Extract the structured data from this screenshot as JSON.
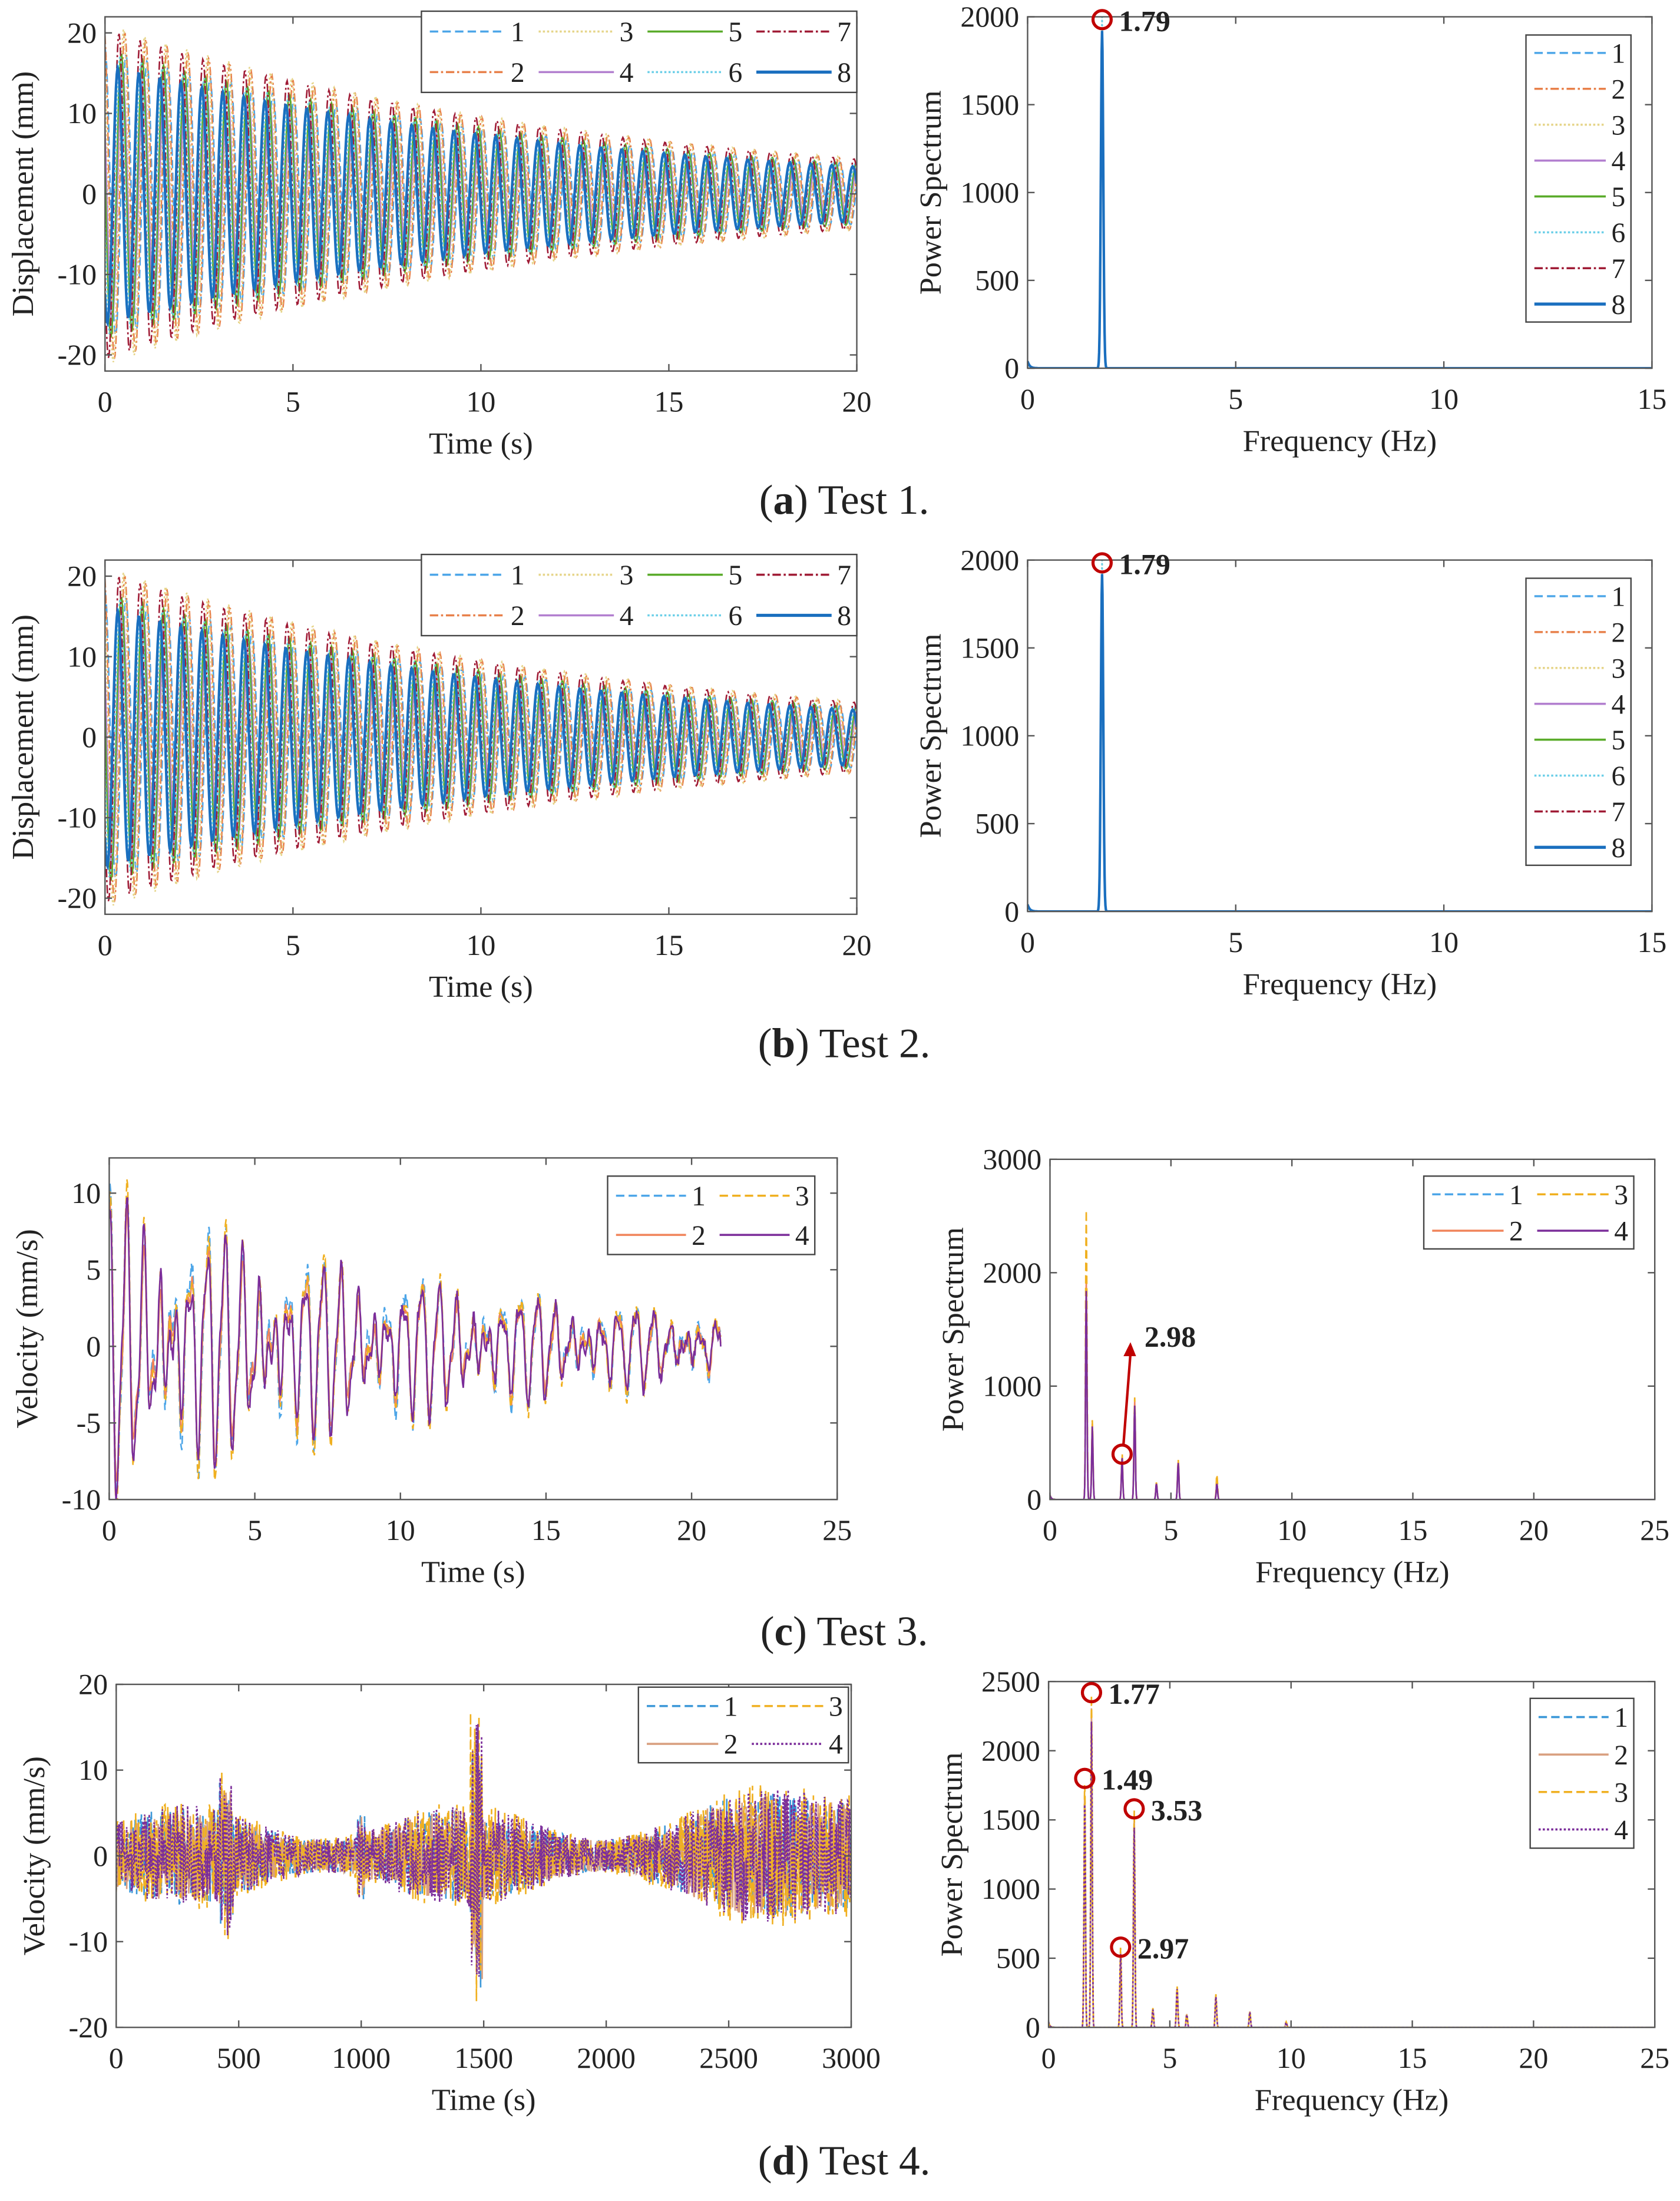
{
  "chart_data": [
    {
      "id": "a-left",
      "type": "line",
      "panel": "a",
      "xlabel": "Time (s)",
      "ylabel": "Displacement (mm)",
      "xlim": [
        0,
        20
      ],
      "ylim": [
        -22,
        22
      ],
      "xticks": [
        0,
        5,
        10,
        15,
        20
      ],
      "yticks": [
        -20,
        -10,
        0,
        10,
        20
      ],
      "signal": {
        "kind": "decay",
        "frequency_hz": 1.79,
        "amplitude_start": 19,
        "amplitude_end": 4
      },
      "series": [
        {
          "name": "1",
          "color": "#4da6e8",
          "dash": "dashed",
          "amp_scale": 0.95
        },
        {
          "name": "2",
          "color": "#e8804a",
          "dash": "dashdot",
          "amp_scale": 1.1
        },
        {
          "name": "3",
          "color": "#e6d58a",
          "dash": "dotted",
          "amp_scale": 1.12
        },
        {
          "name": "4",
          "color": "#b27fcf",
          "dash": "solid",
          "amp_scale": 0.85
        },
        {
          "name": "5",
          "color": "#5aab2a",
          "dash": "solid",
          "amp_scale": 0.95
        },
        {
          "name": "6",
          "color": "#6ccfe8",
          "dash": "dotted",
          "amp_scale": 0.93
        },
        {
          "name": "7",
          "color": "#a01c36",
          "dash": "dashdot",
          "amp_scale": 1.08
        },
        {
          "name": "8",
          "color": "#1a6fbf",
          "dash": "solid",
          "amp_scale": 0.85
        }
      ],
      "legend": "top-right, 4 columns"
    },
    {
      "id": "a-right",
      "type": "line",
      "panel": "a",
      "xlabel": "Frequency (Hz)",
      "ylabel": "Power Spectrum",
      "xlim": [
        0,
        15
      ],
      "ylim": [
        0,
        2000
      ],
      "xticks": [
        0,
        5,
        10,
        15
      ],
      "yticks": [
        0,
        500,
        1000,
        1500,
        2000
      ],
      "peaks": [
        [
          1.79,
          2000
        ]
      ],
      "annotations": [
        {
          "x": 1.79,
          "y": 2000,
          "label": "1.79"
        }
      ],
      "series_from": "a-left",
      "legend": "top-right, 1 column"
    },
    {
      "id": "b-left",
      "type": "line",
      "panel": "b",
      "xlabel": "Time (s)",
      "ylabel": "Displacement (mm)",
      "xlim": [
        0,
        20
      ],
      "ylim": [
        -22,
        22
      ],
      "xticks": [
        0,
        5,
        10,
        15,
        20
      ],
      "yticks": [
        -20,
        -10,
        0,
        10,
        20
      ],
      "signal": {
        "kind": "decay",
        "frequency_hz": 1.79,
        "amplitude_start": 19,
        "amplitude_end": 4
      },
      "series_from": "a-left",
      "legend": "top-right, 4 columns"
    },
    {
      "id": "b-right",
      "type": "line",
      "panel": "b",
      "xlabel": "Frequency (Hz)",
      "ylabel": "Power Spectrum",
      "xlim": [
        0,
        15
      ],
      "ylim": [
        0,
        2000
      ],
      "xticks": [
        0,
        5,
        10,
        15
      ],
      "yticks": [
        0,
        500,
        1000,
        1500,
        2000
      ],
      "peaks": [
        [
          1.79,
          2000
        ]
      ],
      "annotations": [
        {
          "x": 1.79,
          "y": 2000,
          "label": "1.79"
        }
      ],
      "series_from": "a-left",
      "legend": "top-right, 1 column"
    },
    {
      "id": "c-left",
      "type": "line",
      "panel": "c",
      "xlabel": "Time (s)",
      "ylabel": "Velocity (mm/s)",
      "xlim": [
        0,
        25
      ],
      "ylim": [
        -10,
        12.3
      ],
      "xticks": [
        0,
        5,
        10,
        15,
        20,
        25
      ],
      "yticks": [
        -10,
        -5,
        0,
        5,
        10
      ],
      "signal": {
        "kind": "beat",
        "frequency_hz": 1.77,
        "end_time_s": 21,
        "amplitude_start": 9,
        "amplitude_end": 2
      },
      "series": [
        {
          "name": "1",
          "color": "#4da6e8",
          "dash": "dashed",
          "amp_scale": 1.05
        },
        {
          "name": "2",
          "color": "#f0845a",
          "dash": "solid",
          "amp_scale": 0.95
        },
        {
          "name": "3",
          "color": "#f0b020",
          "dash": "dashed",
          "amp_scale": 1.1
        },
        {
          "name": "4",
          "color": "#7b2d9a",
          "dash": "solid",
          "amp_scale": 1.0
        }
      ],
      "legend": "top-right, 2 columns"
    },
    {
      "id": "c-right",
      "type": "line",
      "panel": "c",
      "xlabel": "Frequency (Hz)",
      "ylabel": "Power Spectrum",
      "xlim": [
        0,
        25
      ],
      "ylim": [
        0,
        3000
      ],
      "xticks": [
        0,
        5,
        10,
        15,
        20,
        25
      ],
      "yticks": [
        0,
        1000,
        2000,
        3000
      ],
      "peaks": [
        [
          1.5,
          2000
        ],
        [
          1.75,
          700
        ],
        [
          2.98,
          400
        ],
        [
          3.5,
          900
        ],
        [
          4.4,
          150
        ],
        [
          5.3,
          350
        ],
        [
          6.9,
          150
        ]
      ],
      "series_peak_overrides": {
        "3": [
          [
            1.5,
            2550
          ],
          [
            6.9,
            220
          ]
        ]
      },
      "annotations": [
        {
          "x": 2.98,
          "y": 400,
          "label": "2.98",
          "arrow": true
        }
      ],
      "series_from": "c-left",
      "legend": "top-right, 2 columns"
    },
    {
      "id": "d-left",
      "type": "line",
      "panel": "d",
      "xlabel": "Time (s)",
      "ylabel": "Velocity (mm/s)",
      "xlim": [
        0,
        3000
      ],
      "ylim": [
        -20,
        20
      ],
      "xticks": [
        0,
        500,
        1000,
        1500,
        2000,
        2500,
        3000
      ],
      "yticks": [
        -20,
        -10,
        0,
        10,
        20
      ],
      "signal": {
        "kind": "ambient",
        "amplitude": 5
      },
      "series": [
        {
          "name": "1",
          "color": "#3a97d8",
          "dash": "dashed",
          "amp_scale": 0.95
        },
        {
          "name": "2",
          "color": "#d9a080",
          "dash": "solid",
          "amp_scale": 0.9
        },
        {
          "name": "3",
          "color": "#f0b020",
          "dash": "dashed",
          "amp_scale": 1.05
        },
        {
          "name": "4",
          "color": "#7b2d9a",
          "dash": "dotted",
          "amp_scale": 1.0
        }
      ],
      "legend": "top-right, 2 columns"
    },
    {
      "id": "d-right",
      "type": "line",
      "panel": "d",
      "xlabel": "Frequency (Hz)",
      "ylabel": "Power Spectrum",
      "xlim": [
        0,
        25
      ],
      "ylim": [
        0,
        2500
      ],
      "xticks": [
        0,
        5,
        10,
        15,
        20,
        25
      ],
      "yticks": [
        0,
        500,
        1000,
        1500,
        2000,
        2500
      ],
      "peaks": [
        [
          1.49,
          1800
        ],
        [
          1.77,
          2420
        ],
        [
          2.97,
          580
        ],
        [
          3.53,
          1580
        ],
        [
          4.3,
          140
        ],
        [
          5.3,
          300
        ],
        [
          5.7,
          100
        ],
        [
          6.9,
          240
        ],
        [
          8.3,
          120
        ],
        [
          9.8,
          40
        ]
      ],
      "annotations": [
        {
          "x": 1.77,
          "y": 2420,
          "label": "1.77"
        },
        {
          "x": 1.49,
          "y": 1800,
          "label": "1.49"
        },
        {
          "x": 3.53,
          "y": 1580,
          "label": "3.53"
        },
        {
          "x": 2.97,
          "y": 580,
          "label": "2.97"
        }
      ],
      "series_from": "d-left",
      "legend": "top-right, 1 column"
    }
  ],
  "captions": [
    {
      "letter": "a",
      "text": " Test 1."
    },
    {
      "letter": "b",
      "text": " Test 2."
    },
    {
      "letter": "c",
      "text": " Test 3."
    },
    {
      "letter": "d",
      "text": " Test 4."
    }
  ],
  "colors": {
    "annotation": "#c00000",
    "axis": "#555555"
  }
}
